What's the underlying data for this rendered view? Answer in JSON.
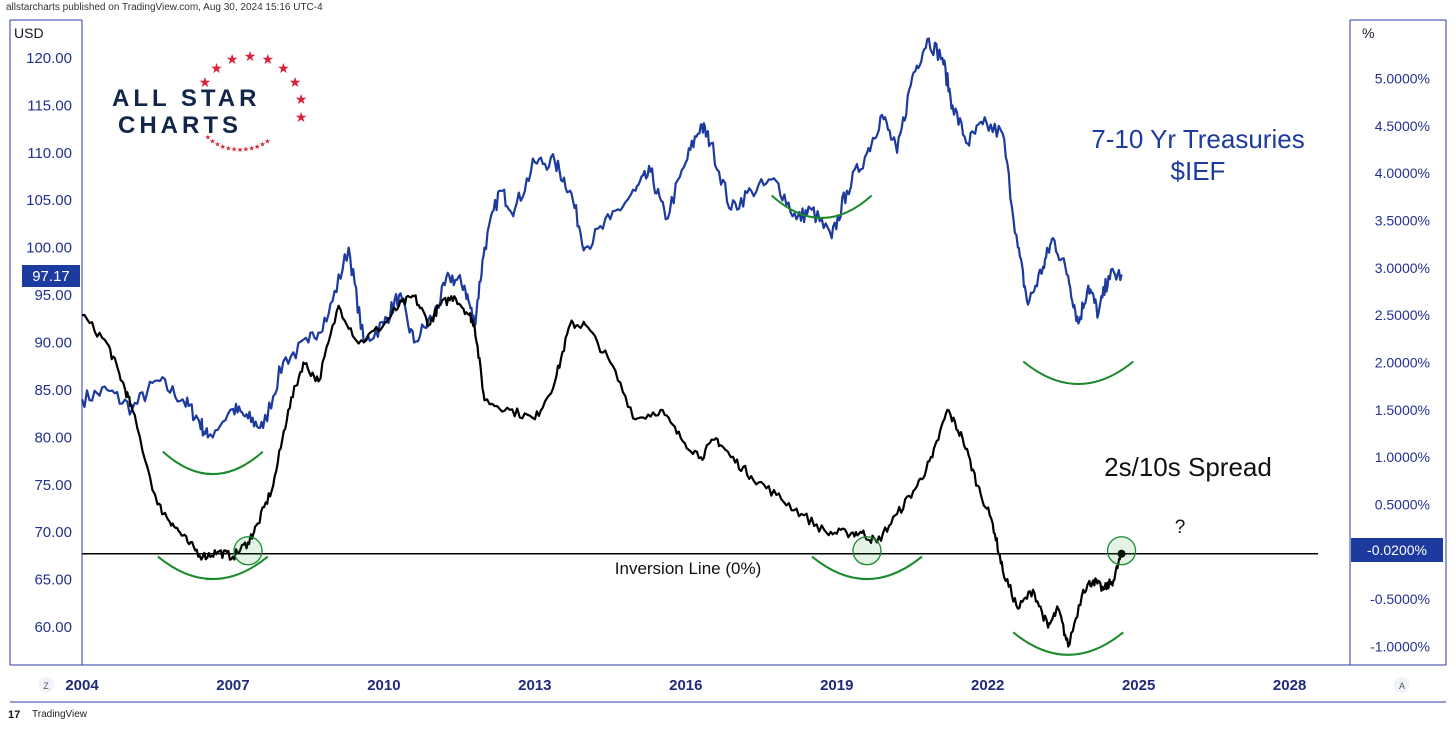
{
  "header": {
    "publish_note": "allstarcharts published on TradingView.com, Aug 30, 2024 15:16 UTC-4"
  },
  "footer": {
    "brand": "TradingView",
    "left_btn": "Z",
    "right_btn": "A"
  },
  "logo": {
    "line1": "ALL STAR",
    "line2": "CHARTS"
  },
  "chart_data": {
    "type": "line",
    "left_axis": {
      "unit": "USD",
      "ticks": [
        "120.00",
        "115.00",
        "110.00",
        "105.00",
        "100.00",
        "95.00",
        "90.00",
        "85.00",
        "80.00",
        "75.00",
        "70.00",
        "65.00",
        "60.00"
      ],
      "range": [
        56,
        124
      ],
      "last_price_label": "97.17",
      "color": "#22318f"
    },
    "right_axis": {
      "unit": "%",
      "ticks": [
        "5.0000%",
        "4.5000%",
        "4.0000%",
        "3.5000%",
        "3.0000%",
        "2.5000%",
        "2.0000%",
        "1.5000%",
        "1.0000%",
        "0.5000%",
        "0.0000%",
        "-0.5000%",
        "-1.0000%"
      ],
      "range": [
        -1.195,
        5.617
      ],
      "last_value_label": "-0.0200%",
      "color": "#22318f"
    },
    "x_axis": {
      "ticks": [
        "2004",
        "2007",
        "2010",
        "2013",
        "2016",
        "2019",
        "2022",
        "2025",
        "2028"
      ],
      "range": [
        2004.0,
        2029.2
      ]
    },
    "series": [
      {
        "name": "7-10 Yr Treasuries $IEF",
        "axis": "left",
        "color": "#1d3a9e",
        "x": [
          2004.0,
          2004.5,
          2005.0,
          2005.5,
          2006.0,
          2006.3,
          2006.5,
          2007.0,
          2007.3,
          2007.6,
          2008.0,
          2008.5,
          2008.9,
          2009.3,
          2009.6,
          2010.0,
          2010.3,
          2010.6,
          2011.0,
          2011.3,
          2011.6,
          2011.8,
          2012.0,
          2012.3,
          2012.6,
          2013.0,
          2013.4,
          2013.7,
          2014.0,
          2014.5,
          2015.0,
          2015.3,
          2015.6,
          2016.0,
          2016.3,
          2016.5,
          2016.9,
          2017.3,
          2017.8,
          2018.2,
          2018.5,
          2018.9,
          2019.2,
          2019.6,
          2019.9,
          2020.2,
          2020.5,
          2020.8,
          2021.1,
          2021.3,
          2021.6,
          2021.9,
          2022.3,
          2022.6,
          2022.8,
          2023.1,
          2023.3,
          2023.6,
          2023.8,
          2024.0,
          2024.2,
          2024.4,
          2024.66
        ],
        "y": [
          84,
          85,
          83,
          86,
          84,
          82,
          80,
          83,
          82,
          81,
          88,
          90,
          93,
          100,
          90,
          92,
          95,
          90,
          93,
          97,
          96,
          92,
          100,
          106,
          104,
          109,
          109,
          106,
          100,
          103,
          106,
          108,
          103,
          109,
          113,
          111,
          104,
          106,
          107,
          103,
          104,
          101,
          106,
          110,
          114,
          110,
          118,
          122,
          120,
          115,
          111,
          113,
          112,
          100,
          94,
          98,
          101,
          97,
          92,
          96,
          93,
          97,
          97.17
        ]
      },
      {
        "name": "2s/10s Spread",
        "axis": "right",
        "color": "#000000",
        "x": [
          2004.0,
          2004.5,
          2004.8,
          2005.0,
          2005.5,
          2005.8,
          2006.1,
          2006.4,
          2006.7,
          2007.0,
          2007.3,
          2007.5,
          2007.8,
          2008.1,
          2008.4,
          2008.7,
          2009.1,
          2009.5,
          2010.0,
          2010.3,
          2010.6,
          2010.9,
          2011.1,
          2011.4,
          2011.7,
          2011.8,
          2012.0,
          2012.5,
          2013.0,
          2013.4,
          2013.7,
          2014.0,
          2014.5,
          2015.0,
          2015.5,
          2015.9,
          2016.3,
          2016.6,
          2016.9,
          2017.3,
          2017.8,
          2018.3,
          2018.8,
          2019.2,
          2019.5,
          2019.8,
          2020.2,
          2020.6,
          2020.9,
          2021.2,
          2021.5,
          2021.8,
          2022.1,
          2022.3,
          2022.6,
          2022.9,
          2023.2,
          2023.4,
          2023.6,
          2023.9,
          2024.1,
          2024.3,
          2024.5,
          2024.66
        ],
        "y": [
          2.5,
          2.2,
          1.8,
          1.5,
          0.5,
          0.3,
          0.1,
          -0.05,
          0.0,
          -0.05,
          0.1,
          0.3,
          0.7,
          1.5,
          2.0,
          1.8,
          2.6,
          2.2,
          2.4,
          2.6,
          2.7,
          2.4,
          2.6,
          2.7,
          2.5,
          2.4,
          1.6,
          1.5,
          1.4,
          1.8,
          2.4,
          2.4,
          2.0,
          1.4,
          1.5,
          1.2,
          1.0,
          1.2,
          1.0,
          0.8,
          0.6,
          0.4,
          0.2,
          0.2,
          0.2,
          0.1,
          0.4,
          0.7,
          1.0,
          1.5,
          1.2,
          0.7,
          0.3,
          -0.2,
          -0.6,
          -0.4,
          -0.8,
          -0.6,
          -1.0,
          -0.4,
          -0.3,
          -0.4,
          -0.3,
          -0.02
        ]
      }
    ],
    "annotations": {
      "ief_title_1": "7-10 Yr Treasuries",
      "ief_title_2": "$IEF",
      "spread_title": "2s/10s Spread",
      "inversion_label": "Inversion Line (0%)",
      "question": "?"
    },
    "marked_lows_years": [
      2006.6,
      2018.7,
      2023.8,
      2006.6,
      2019.6,
      2023.6
    ],
    "inversion_line_value": -0.02,
    "grid": false,
    "legend": "none"
  }
}
